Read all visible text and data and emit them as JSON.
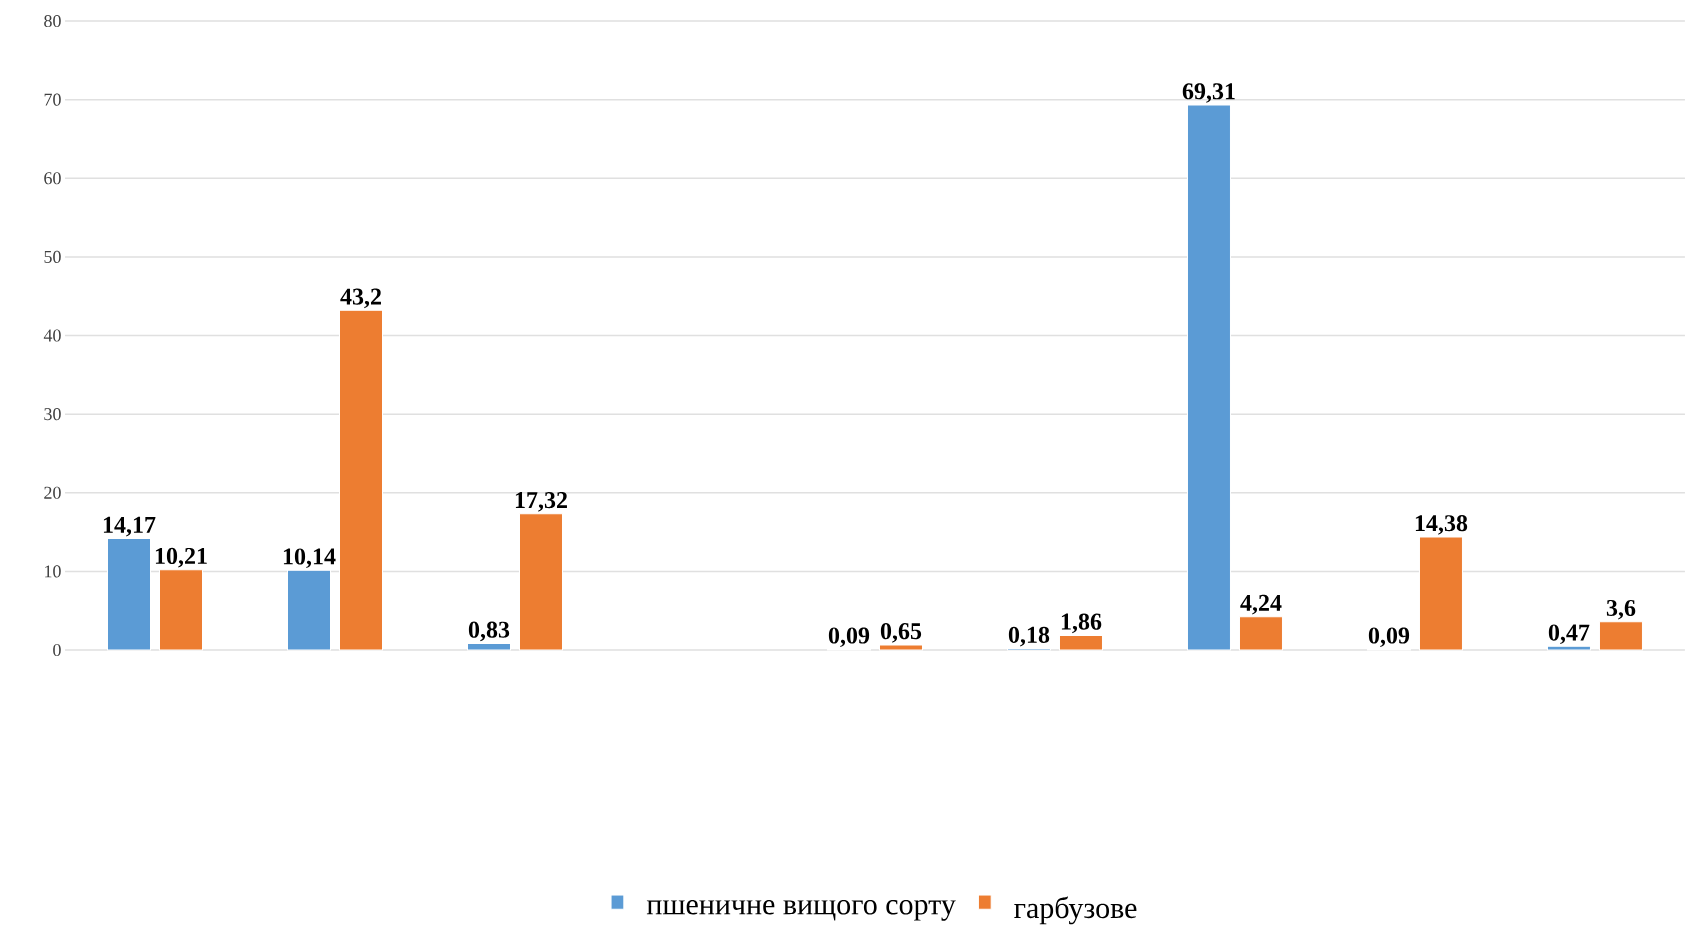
{
  "chart_data": {
    "type": "bar",
    "categories": [
      null,
      null,
      null,
      null,
      null,
      null,
      null,
      null,
      null
    ],
    "series": [
      {
        "name": "пшеничне вищого сорту",
        "color": "#5b9bd5",
        "values": [
          14.17,
          10.14,
          0.83,
          null,
          0.09,
          0.18,
          69.31,
          0.09,
          0.47
        ],
        "value_labels": [
          "14,17",
          "10,14",
          "0,83",
          null,
          "0,09",
          "0,18",
          "69,31",
          "0,09",
          "0,47"
        ]
      },
      {
        "name": "гарбузове",
        "color": "#ed7d31",
        "values": [
          10.21,
          43.2,
          17.32,
          null,
          0.65,
          1.86,
          4.24,
          14.38,
          3.6
        ],
        "value_labels": [
          "10,21",
          "43,2",
          "17,32",
          null,
          "0,65",
          "1,86",
          "4,24",
          "14,38",
          "3,6"
        ]
      }
    ],
    "ylim": [
      0,
      80
    ],
    "yticks": [
      0,
      10,
      20,
      30,
      40,
      50,
      60,
      70,
      80
    ],
    "grid": "y",
    "legend": "bottom"
  }
}
